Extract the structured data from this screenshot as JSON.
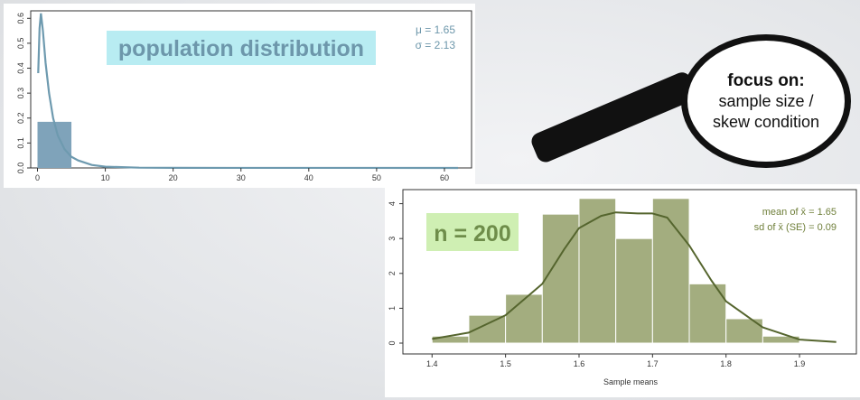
{
  "chart_data": [
    {
      "type": "histogram",
      "title": "population distribution",
      "annotations": [
        "μ = 1.65",
        "σ = 2.13"
      ],
      "x_ticks": [
        0,
        10,
        20,
        30,
        40,
        50,
        60
      ],
      "y_ticks": [
        "0.0",
        "0.1",
        "0.2",
        "0.3",
        "0.4",
        "0.5",
        "0.6"
      ],
      "xlim": [
        -1,
        64
      ],
      "ylim": [
        0,
        0.63
      ],
      "bars": [
        {
          "x0": 0,
          "x1": 5,
          "value": 0.185
        }
      ],
      "density_curve": [
        [
          0.1,
          0.38
        ],
        [
          0.3,
          0.56
        ],
        [
          0.5,
          0.62
        ],
        [
          0.8,
          0.55
        ],
        [
          1.2,
          0.42
        ],
        [
          1.7,
          0.3
        ],
        [
          2.3,
          0.2
        ],
        [
          3,
          0.13
        ],
        [
          4,
          0.075
        ],
        [
          5,
          0.045
        ],
        [
          6,
          0.03
        ],
        [
          8,
          0.012
        ],
        [
          10,
          0.005
        ],
        [
          15,
          0.001
        ],
        [
          20,
          0.0005
        ],
        [
          62,
          0
        ]
      ],
      "colors": {
        "bar": "#7fa3ba",
        "curve": "#6e9aaf",
        "label_bg": "#b8ecf2",
        "label_text": "#6d97ab",
        "annot": "#6d97ab"
      }
    },
    {
      "type": "histogram",
      "title": "n = 200",
      "xlabel": "Sample means",
      "annotations": [
        "mean of  x̄ = 1.65",
        "sd of  x̄ (SE) = 0.09"
      ],
      "x_ticks": [
        "1.4",
        "1.5",
        "1.6",
        "1.7",
        "1.8",
        "1.9"
      ],
      "y_ticks": [
        "0",
        "1",
        "2",
        "3",
        "4"
      ],
      "xlim": [
        1.38,
        1.97
      ],
      "ylim": [
        0,
        4.3
      ],
      "bin_edges": [
        1.4,
        1.45,
        1.5,
        1.55,
        1.6,
        1.65,
        1.7,
        1.75,
        1.8,
        1.85,
        1.9
      ],
      "values": [
        0.2,
        0.8,
        1.4,
        3.7,
        4.15,
        3.0,
        4.15,
        1.7,
        0.7,
        0.2
      ],
      "density_curve": [
        [
          1.4,
          0.12
        ],
        [
          1.45,
          0.3
        ],
        [
          1.5,
          0.8
        ],
        [
          1.55,
          1.7
        ],
        [
          1.58,
          2.7
        ],
        [
          1.6,
          3.3
        ],
        [
          1.63,
          3.65
        ],
        [
          1.65,
          3.75
        ],
        [
          1.68,
          3.72
        ],
        [
          1.7,
          3.72
        ],
        [
          1.72,
          3.6
        ],
        [
          1.75,
          2.8
        ],
        [
          1.78,
          1.8
        ],
        [
          1.8,
          1.2
        ],
        [
          1.85,
          0.45
        ],
        [
          1.9,
          0.1
        ],
        [
          1.95,
          0.03
        ]
      ],
      "colors": {
        "bar": "#a3ad7f",
        "bar_edge": "#ffffff",
        "curve": "#55652e",
        "label_bg": "#cfefb3",
        "label_text": "#6e8d4a",
        "annot": "#6f7f3a"
      }
    }
  ],
  "callout": {
    "title": "focus on:",
    "line1": "sample size /",
    "line2": "skew condition"
  }
}
